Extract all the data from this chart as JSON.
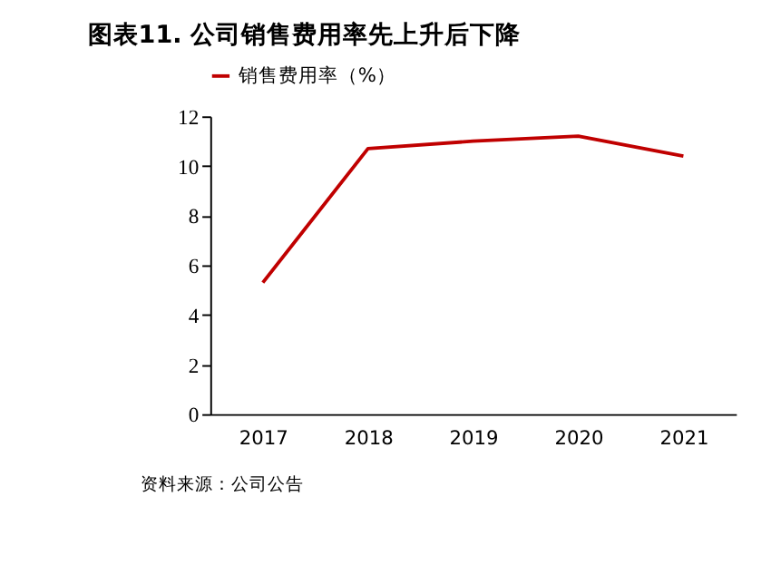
{
  "chart_data": {
    "type": "line",
    "title": "图表11. 公司销售费用率先上升后下降",
    "categories": [
      "2017",
      "2018",
      "2019",
      "2020",
      "2021"
    ],
    "series": [
      {
        "name": "销售费用率（%）",
        "color": "#c00000",
        "values": [
          5.3,
          10.7,
          11.0,
          11.2,
          10.4
        ]
      }
    ],
    "ylim": [
      0,
      12
    ],
    "yticks": [
      0,
      2,
      4,
      6,
      8,
      10,
      12
    ],
    "grid": false,
    "legend": "top",
    "marker": "none",
    "line_style": "solid",
    "annotations": [
      "资料来源：公司公告"
    ]
  }
}
